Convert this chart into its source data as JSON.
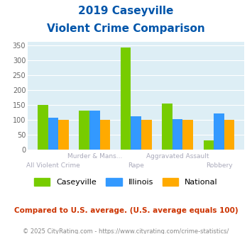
{
  "title_line1": "2019 Caseyville",
  "title_line2": "Violent Crime Comparison",
  "categories": [
    "All Violent Crime",
    "Murder & Mans...",
    "Rape",
    "Aggravated Assault",
    "Robbery"
  ],
  "caseyville": [
    150,
    130,
    343,
    155,
    32
  ],
  "illinois": [
    107,
    130,
    112,
    103,
    121
  ],
  "national": [
    100,
    100,
    100,
    100,
    100
  ],
  "color_caseyville": "#77cc00",
  "color_illinois": "#3399ff",
  "color_national": "#ffaa00",
  "ylim": [
    0,
    360
  ],
  "yticks": [
    0,
    50,
    100,
    150,
    200,
    250,
    300,
    350
  ],
  "bg_color": "#ddeef5",
  "note": "Compared to U.S. average. (U.S. average equals 100)",
  "footer": "© 2025 CityRating.com - https://www.cityrating.com/crime-statistics/",
  "title_color": "#0055aa",
  "note_color": "#cc3300",
  "footer_color": "#888888",
  "xlabel_top_color": "#aaaabb",
  "xlabel_bot_color": "#aaaabb",
  "bar_width": 0.25
}
